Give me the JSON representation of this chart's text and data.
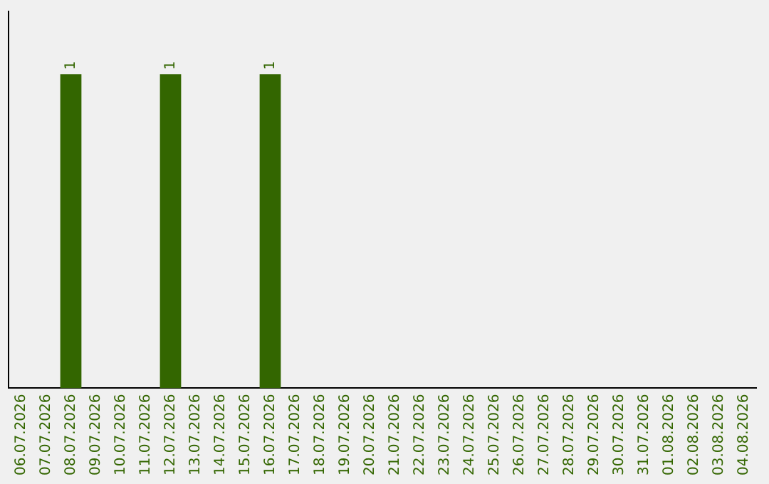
{
  "chart_data": {
    "type": "bar",
    "categories": [
      "06.07.2026",
      "07.07.2026",
      "08.07.2026",
      "09.07.2026",
      "10.07.2026",
      "11.07.2026",
      "12.07.2026",
      "13.07.2026",
      "14.07.2026",
      "15.07.2026",
      "16.07.2026",
      "17.07.2026",
      "18.07.2026",
      "19.07.2026",
      "20.07.2026",
      "21.07.2026",
      "22.07.2026",
      "23.07.2026",
      "24.07.2026",
      "25.07.2026",
      "26.07.2026",
      "27.07.2026",
      "28.07.2026",
      "29.07.2026",
      "30.07.2026",
      "31.07.2026",
      "01.08.2026",
      "02.08.2026",
      "03.08.2026",
      "04.08.2026"
    ],
    "values": [
      0,
      0,
      1,
      0,
      0,
      0,
      1,
      0,
      0,
      0,
      1,
      0,
      0,
      0,
      0,
      0,
      0,
      0,
      0,
      0,
      0,
      0,
      0,
      0,
      0,
      0,
      0,
      0,
      0,
      0
    ],
    "value_labels": [
      null,
      null,
      "1",
      null,
      null,
      null,
      "1",
      null,
      null,
      null,
      "1",
      null,
      null,
      null,
      null,
      null,
      null,
      null,
      null,
      null,
      null,
      null,
      null,
      null,
      null,
      null,
      null,
      null,
      null,
      null
    ],
    "color": "#336600",
    "grid": false,
    "legend": false
  }
}
